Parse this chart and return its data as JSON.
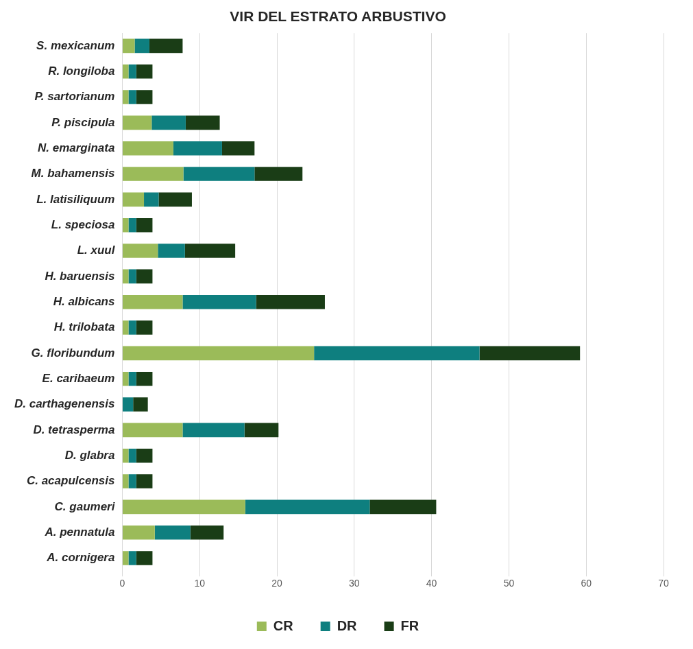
{
  "chart_data": {
    "type": "bar",
    "title": "VIR DEL ESTRATO ARBUSTIVO",
    "orientation": "horizontal",
    "stacked": true,
    "categories": [
      "S. mexicanum",
      "R. longiloba",
      "P. sartorianum",
      "P. piscipula",
      "N. emarginata",
      "M. bahamensis",
      "L. latisiliquum",
      "L. speciosa",
      "L. xuul",
      "H. baruensis",
      "H. albicans",
      "H. trilobata",
      "G. floribundum",
      "E. caribaeum",
      "D. carthagenensis",
      "D. tetrasperma",
      "D. glabra",
      "C. acapulcensis",
      "C. gaumeri",
      "A. pennatula",
      "A. cornigera"
    ],
    "series": [
      {
        "name": "CR",
        "color": "#9bbb59",
        "values": [
          1.6,
          0.8,
          0.8,
          3.8,
          6.6,
          7.9,
          2.8,
          0.8,
          4.6,
          0.8,
          7.8,
          0.8,
          24.8,
          0.8,
          0,
          7.8,
          0.8,
          0.8,
          15.9,
          4.2,
          0.8
        ]
      },
      {
        "name": "DR",
        "color": "#0e7f7f",
        "values": [
          1.9,
          1.0,
          1.0,
          4.4,
          6.3,
          9.2,
          1.9,
          1.0,
          3.5,
          1.0,
          9.5,
          1.0,
          21.4,
          1.0,
          1.4,
          8.0,
          1.0,
          1.0,
          16.1,
          4.6,
          1.0
        ]
      },
      {
        "name": "FR",
        "color": "#1a3d16",
        "values": [
          4.3,
          2.1,
          2.1,
          4.4,
          4.2,
          6.2,
          4.3,
          2.1,
          6.5,
          2.1,
          8.9,
          2.1,
          13.0,
          2.1,
          1.9,
          4.4,
          2.1,
          2.1,
          8.6,
          4.3,
          2.1
        ]
      }
    ],
    "xlim": [
      0,
      70
    ],
    "xticks": [
      0,
      10,
      20,
      30,
      40,
      50,
      60,
      70
    ],
    "grid": "x",
    "legend": "bottom"
  }
}
